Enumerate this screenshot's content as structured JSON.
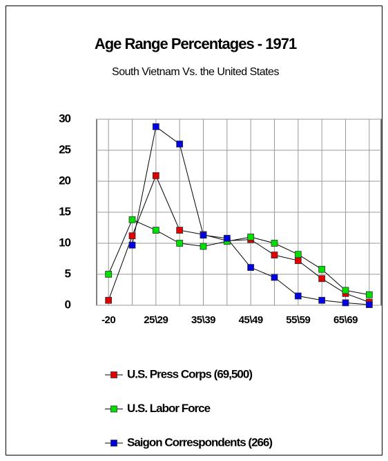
{
  "chart_data": {
    "type": "line",
    "title": "Age Range Percentages - 1971",
    "subtitle": "South Vietnam Vs. the United States",
    "categories": [
      "-20",
      null,
      "25\\29",
      null,
      "35\\39",
      null,
      "45\\49",
      null,
      "55\\59",
      null,
      "65\\69",
      null
    ],
    "series": [
      {
        "name": "U.S. Press Corps (69,500)",
        "color": "#e00000",
        "values": [
          0.8,
          11.2,
          20.9,
          12.1,
          11.4,
          10.4,
          10.6,
          8.1,
          7.2,
          4.3,
          1.9,
          0.5
        ]
      },
      {
        "name": "U.S. Labor Force",
        "color": "#00e000",
        "values": [
          5.0,
          13.8,
          12.1,
          10.0,
          9.5,
          10.3,
          11.0,
          10.0,
          8.2,
          5.8,
          2.4,
          1.7
        ]
      },
      {
        "name": "Saigon Correspondents (266)",
        "color": "#0000e0",
        "values": [
          null,
          9.7,
          28.8,
          26.0,
          11.3,
          10.8,
          6.1,
          4.5,
          1.5,
          0.8,
          0.4,
          0.1
        ]
      }
    ],
    "ylim": [
      0,
      30
    ],
    "yticks": [
      0,
      5,
      10,
      15,
      20,
      25,
      30
    ],
    "grid": true
  }
}
